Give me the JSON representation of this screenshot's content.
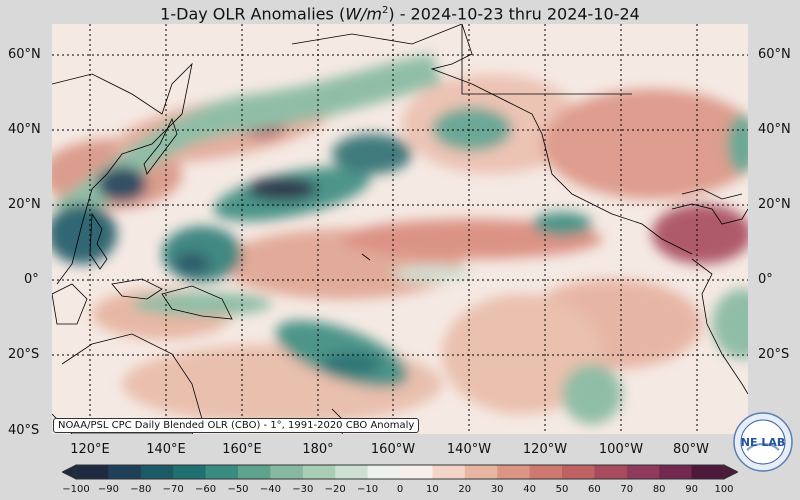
{
  "title": {
    "prefix": "1-Day OLR Anomalies (",
    "unit_main": "W/m",
    "unit_exp": "2",
    "suffix": ") - 2024-10-23 thru 2024-10-24"
  },
  "lat_labels": [
    {
      "text": "60°N",
      "lat": 60
    },
    {
      "text": "40°N",
      "lat": 40
    },
    {
      "text": "20°N",
      "lat": 20
    },
    {
      "text": "0°",
      "lat": 0
    },
    {
      "text": "20°S",
      "lat": -20
    },
    {
      "text": "40°S",
      "lat": -40
    }
  ],
  "lon_labels": [
    {
      "text": "120°E",
      "lon": 120
    },
    {
      "text": "140°E",
      "lon": 140
    },
    {
      "text": "160°E",
      "lon": 160
    },
    {
      "text": "180°",
      "lon": 180
    },
    {
      "text": "160°W",
      "lon": 200
    },
    {
      "text": "140°W",
      "lon": 220
    },
    {
      "text": "120°W",
      "lon": 240
    },
    {
      "text": "100°W",
      "lon": 260
    },
    {
      "text": "80°W",
      "lon": 280
    }
  ],
  "source_note": "NOAA/PSL CPC Daily Blended OLR (CBO) - 1°, 1991-2020 CBO Anomaly",
  "colorbar": {
    "ticks": [
      "−100",
      "−90",
      "−80",
      "−70",
      "−60",
      "−50",
      "−40",
      "−30",
      "−20",
      "−10",
      "0",
      "10",
      "20",
      "30",
      "40",
      "50",
      "60",
      "70",
      "80",
      "90",
      "100"
    ],
    "colors": [
      "#1e2a3f",
      "#1f3f58",
      "#1d5a68",
      "#1f7171",
      "#3a8c80",
      "#5ea28e",
      "#86b9a0",
      "#a9cdb5",
      "#cde0d2",
      "#eef2ee",
      "#f8efea",
      "#f2d5c8",
      "#e8b5a3",
      "#dc9585",
      "#cf7a70",
      "#c06164",
      "#a84b5f",
      "#8f3a5a",
      "#72284f",
      "#4d1a3c"
    ]
  },
  "logo_text": "NE  LAB"
}
